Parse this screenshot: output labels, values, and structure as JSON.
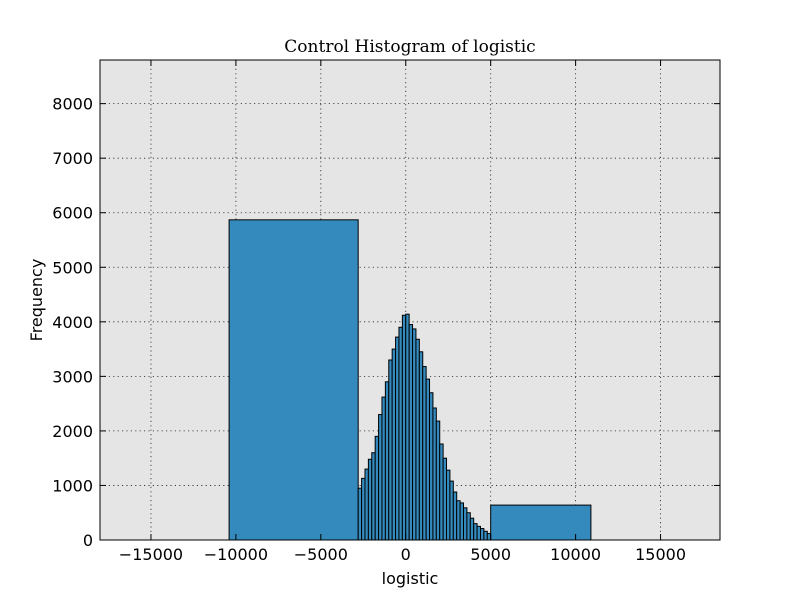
{
  "chart_data": {
    "type": "bar",
    "title": "Control Histogram of logistic",
    "xlabel": "logistic",
    "ylabel": "Frequency",
    "xlim": [
      -18000,
      18500
    ],
    "ylim": [
      0,
      8800
    ],
    "grid": true,
    "bar_color": "#348abd",
    "background_color": "#e5e5e5",
    "x_ticks": [
      -15000,
      -10000,
      -5000,
      0,
      5000,
      10000,
      15000
    ],
    "x_tick_labels": [
      "−15000",
      "−10000",
      "−5000",
      "0",
      "5000",
      "10000",
      "15000"
    ],
    "y_ticks": [
      0,
      1000,
      2000,
      3000,
      4000,
      5000,
      6000,
      7000,
      8000
    ],
    "y_tick_labels": [
      "0",
      "1000",
      "2000",
      "3000",
      "4000",
      "5000",
      "6000",
      "7000",
      "8000"
    ],
    "bins": [
      {
        "x0": -10400,
        "x1": -2800,
        "value": 5870
      },
      {
        "x0": -2800,
        "x1": -2600,
        "value": 950
      },
      {
        "x0": -2600,
        "x1": -2400,
        "value": 1130
      },
      {
        "x0": -2400,
        "x1": -2200,
        "value": 1300
      },
      {
        "x0": -2200,
        "x1": -2000,
        "value": 1480
      },
      {
        "x0": -2000,
        "x1": -1800,
        "value": 1600
      },
      {
        "x0": -1800,
        "x1": -1600,
        "value": 1900
      },
      {
        "x0": -1600,
        "x1": -1400,
        "value": 2300
      },
      {
        "x0": -1400,
        "x1": -1200,
        "value": 2620
      },
      {
        "x0": -1200,
        "x1": -1000,
        "value": 2900
      },
      {
        "x0": -1000,
        "x1": -800,
        "value": 3300
      },
      {
        "x0": -800,
        "x1": -600,
        "value": 3500
      },
      {
        "x0": -600,
        "x1": -400,
        "value": 3720
      },
      {
        "x0": -400,
        "x1": -200,
        "value": 3900
      },
      {
        "x0": -200,
        "x1": 0,
        "value": 4120
      },
      {
        "x0": 0,
        "x1": 200,
        "value": 4140
      },
      {
        "x0": 200,
        "x1": 400,
        "value": 3950
      },
      {
        "x0": 400,
        "x1": 600,
        "value": 3870
      },
      {
        "x0": 600,
        "x1": 800,
        "value": 3680
      },
      {
        "x0": 800,
        "x1": 1000,
        "value": 3450
      },
      {
        "x0": 1000,
        "x1": 1200,
        "value": 3180
      },
      {
        "x0": 1200,
        "x1": 1400,
        "value": 2950
      },
      {
        "x0": 1400,
        "x1": 1600,
        "value": 2700
      },
      {
        "x0": 1600,
        "x1": 1800,
        "value": 2420
      },
      {
        "x0": 1800,
        "x1": 2000,
        "value": 2180
      },
      {
        "x0": 2000,
        "x1": 2200,
        "value": 1760
      },
      {
        "x0": 2200,
        "x1": 2400,
        "value": 1500
      },
      {
        "x0": 2400,
        "x1": 2600,
        "value": 1280
      },
      {
        "x0": 2600,
        "x1": 2800,
        "value": 1080
      },
      {
        "x0": 2800,
        "x1": 3000,
        "value": 880
      },
      {
        "x0": 3000,
        "x1": 3200,
        "value": 720
      },
      {
        "x0": 3200,
        "x1": 3400,
        "value": 680
      },
      {
        "x0": 3400,
        "x1": 3600,
        "value": 590
      },
      {
        "x0": 3600,
        "x1": 3800,
        "value": 500
      },
      {
        "x0": 3800,
        "x1": 4000,
        "value": 400
      },
      {
        "x0": 4000,
        "x1": 4200,
        "value": 300
      },
      {
        "x0": 4200,
        "x1": 4400,
        "value": 250
      },
      {
        "x0": 4400,
        "x1": 4600,
        "value": 210
      },
      {
        "x0": 4600,
        "x1": 4800,
        "value": 160
      },
      {
        "x0": 4800,
        "x1": 5000,
        "value": 120
      },
      {
        "x0": 5000,
        "x1": 10900,
        "value": 640
      }
    ]
  }
}
